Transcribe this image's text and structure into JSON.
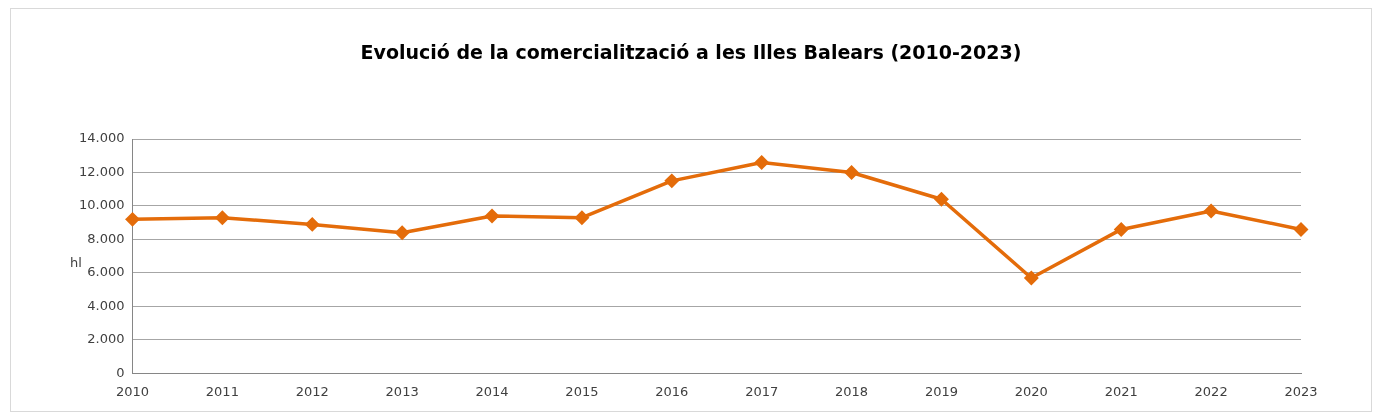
{
  "chart_data": {
    "type": "line",
    "title": "Evolució de la comercialització a les Illes Balears (2010-2023)",
    "ylabel": "hl",
    "categories": [
      "2010",
      "2011",
      "2012",
      "2013",
      "2014",
      "2015",
      "2016",
      "2017",
      "2018",
      "2019",
      "2020",
      "2021",
      "2022",
      "2023"
    ],
    "series": [
      {
        "color": "#e46c0a",
        "values": [
          9200,
          9300,
          8900,
          8400,
          9400,
          9300,
          11500,
          12600,
          12000,
          10400,
          5700,
          8600,
          9700,
          8600
        ]
      }
    ],
    "ylim": [
      0,
      14000
    ],
    "yticks": [
      {
        "value": 0,
        "label": "0"
      },
      {
        "value": 2000,
        "label": "2.000"
      },
      {
        "value": 4000,
        "label": "4.000"
      },
      {
        "value": 6000,
        "label": "6.000"
      },
      {
        "value": 8000,
        "label": "8.000"
      },
      {
        "value": 10000,
        "label": "10.000"
      },
      {
        "value": 12000,
        "label": "12.000"
      },
      {
        "value": 14000,
        "label": "14.000"
      }
    ],
    "grid": "y",
    "marker": "diamond",
    "line_style": "solid",
    "legend": false
  }
}
